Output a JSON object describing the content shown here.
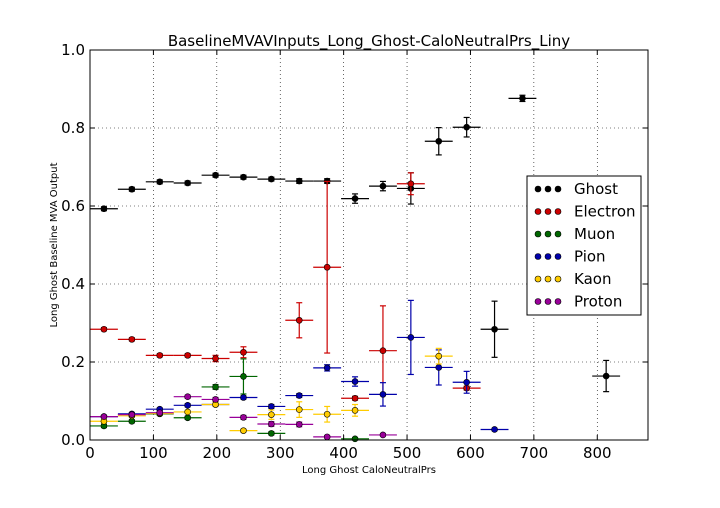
{
  "chart_data": {
    "type": "scatter",
    "title": "BaselineMVAVInputs_Long_Ghost-CaloNeutralPrs_Liny",
    "xlabel": "Long Ghost CaloNeutralPrs",
    "ylabel": "Long Ghost Baseline MVA Output",
    "xlim": [
      0,
      880
    ],
    "ylim": [
      0.0,
      1.0
    ],
    "x_ticks": [
      0,
      100,
      200,
      300,
      400,
      500,
      600,
      700,
      800
    ],
    "y_ticks": [
      0.0,
      0.2,
      0.4,
      0.6,
      0.8,
      1.0
    ],
    "x_tick_labels": [
      "0",
      "100",
      "200",
      "300",
      "400",
      "500",
      "600",
      "700",
      "800"
    ],
    "y_tick_labels": [
      "0.0",
      "0.2",
      "0.4",
      "0.6",
      "0.8",
      "1.0"
    ],
    "grid": true,
    "legend_position": "right",
    "series": [
      {
        "name": "Ghost",
        "color": "#000000",
        "points": [
          {
            "x": 22,
            "xerr": 22,
            "y": 0.593,
            "yerr": 0.005
          },
          {
            "x": 66,
            "xerr": 22,
            "y": 0.643,
            "yerr": 0.005
          },
          {
            "x": 110,
            "xerr": 22,
            "y": 0.662,
            "yerr": 0.005
          },
          {
            "x": 154,
            "xerr": 22,
            "y": 0.659,
            "yerr": 0.005
          },
          {
            "x": 198,
            "xerr": 22,
            "y": 0.679,
            "yerr": 0.005
          },
          {
            "x": 242,
            "xerr": 22,
            "y": 0.674,
            "yerr": 0.005
          },
          {
            "x": 286,
            "xerr": 22,
            "y": 0.669,
            "yerr": 0.005
          },
          {
            "x": 330,
            "xerr": 22,
            "y": 0.664,
            "yerr": 0.006
          },
          {
            "x": 374,
            "xerr": 22,
            "y": 0.664,
            "yerr": 0.006
          },
          {
            "x": 418,
            "xerr": 22,
            "y": 0.619,
            "yerr": 0.012
          },
          {
            "x": 462,
            "xerr": 22,
            "y": 0.651,
            "yerr": 0.012
          },
          {
            "x": 506,
            "xerr": 22,
            "y": 0.645,
            "yerr": 0.04
          },
          {
            "x": 550,
            "xerr": 22,
            "y": 0.766,
            "yerr": 0.035
          },
          {
            "x": 594,
            "xerr": 22,
            "y": 0.802,
            "yerr": 0.025
          },
          {
            "x": 638,
            "xerr": 22,
            "y": 0.284,
            "yerr": 0.072
          },
          {
            "x": 682,
            "xerr": 22,
            "y": 0.876,
            "yerr": 0.008
          },
          {
            "x": 814,
            "xerr": 22,
            "y": 0.164,
            "yerr": 0.04
          }
        ]
      },
      {
        "name": "Electron",
        "color": "#cc0000",
        "points": [
          {
            "x": 22,
            "xerr": 22,
            "y": 0.284,
            "yerr": 0.004
          },
          {
            "x": 66,
            "xerr": 22,
            "y": 0.258,
            "yerr": 0.004
          },
          {
            "x": 110,
            "xerr": 22,
            "y": 0.217,
            "yerr": 0.004
          },
          {
            "x": 154,
            "xerr": 22,
            "y": 0.217,
            "yerr": 0.004
          },
          {
            "x": 198,
            "xerr": 22,
            "y": 0.209,
            "yerr": 0.008
          },
          {
            "x": 242,
            "xerr": 22,
            "y": 0.225,
            "yerr": 0.014
          },
          {
            "x": 330,
            "xerr": 22,
            "y": 0.307,
            "yerr": 0.045
          },
          {
            "x": 374,
            "xerr": 22,
            "y": 0.443,
            "yerr": 0.22
          },
          {
            "x": 418,
            "xerr": 22,
            "y": 0.107,
            "yerr": 0.005
          },
          {
            "x": 462,
            "xerr": 22,
            "y": 0.229,
            "yerr": 0.115
          },
          {
            "x": 506,
            "xerr": 22,
            "y": 0.657,
            "yerr": 0.028
          },
          {
            "x": 594,
            "xerr": 22,
            "y": 0.133,
            "yerr": 0.005
          }
        ]
      },
      {
        "name": "Muon",
        "color": "#006600",
        "points": [
          {
            "x": 22,
            "xerr": 22,
            "y": 0.036,
            "yerr": 0.004
          },
          {
            "x": 66,
            "xerr": 22,
            "y": 0.048,
            "yerr": 0.004
          },
          {
            "x": 110,
            "xerr": 22,
            "y": 0.067,
            "yerr": 0.004
          },
          {
            "x": 154,
            "xerr": 22,
            "y": 0.057,
            "yerr": 0.004
          },
          {
            "x": 198,
            "xerr": 22,
            "y": 0.136,
            "yerr": 0.006
          },
          {
            "x": 242,
            "xerr": 22,
            "y": 0.163,
            "yerr": 0.045
          },
          {
            "x": 286,
            "xerr": 22,
            "y": 0.017,
            "yerr": 0.004
          },
          {
            "x": 418,
            "xerr": 22,
            "y": 0.003,
            "yerr": 0.003
          }
        ]
      },
      {
        "name": "Pion",
        "color": "#0000aa",
        "points": [
          {
            "x": 22,
            "xerr": 22,
            "y": 0.06,
            "yerr": 0.003
          },
          {
            "x": 66,
            "xerr": 22,
            "y": 0.067,
            "yerr": 0.003
          },
          {
            "x": 110,
            "xerr": 22,
            "y": 0.079,
            "yerr": 0.003
          },
          {
            "x": 154,
            "xerr": 22,
            "y": 0.089,
            "yerr": 0.004
          },
          {
            "x": 198,
            "xerr": 22,
            "y": 0.091,
            "yerr": 0.004
          },
          {
            "x": 242,
            "xerr": 22,
            "y": 0.109,
            "yerr": 0.004
          },
          {
            "x": 286,
            "xerr": 22,
            "y": 0.086,
            "yerr": 0.005
          },
          {
            "x": 330,
            "xerr": 22,
            "y": 0.114,
            "yerr": 0.005
          },
          {
            "x": 374,
            "xerr": 22,
            "y": 0.185,
            "yerr": 0.008
          },
          {
            "x": 418,
            "xerr": 22,
            "y": 0.15,
            "yerr": 0.012
          },
          {
            "x": 462,
            "xerr": 22,
            "y": 0.117,
            "yerr": 0.03
          },
          {
            "x": 506,
            "xerr": 22,
            "y": 0.263,
            "yerr": 0.095
          },
          {
            "x": 550,
            "xerr": 22,
            "y": 0.186,
            "yerr": 0.045
          },
          {
            "x": 594,
            "xerr": 22,
            "y": 0.148,
            "yerr": 0.028
          },
          {
            "x": 638,
            "xerr": 22,
            "y": 0.027,
            "yerr": 0.003
          }
        ]
      },
      {
        "name": "Kaon",
        "color": "#ffcc00",
        "points": [
          {
            "x": 22,
            "xerr": 22,
            "y": 0.048,
            "yerr": 0.004
          },
          {
            "x": 66,
            "xerr": 22,
            "y": 0.062,
            "yerr": 0.004
          },
          {
            "x": 110,
            "xerr": 22,
            "y": 0.068,
            "yerr": 0.004
          },
          {
            "x": 154,
            "xerr": 22,
            "y": 0.072,
            "yerr": 0.004
          },
          {
            "x": 198,
            "xerr": 22,
            "y": 0.091,
            "yerr": 0.005
          },
          {
            "x": 242,
            "xerr": 22,
            "y": 0.024,
            "yerr": 0.004
          },
          {
            "x": 286,
            "xerr": 22,
            "y": 0.065,
            "yerr": 0.012
          },
          {
            "x": 330,
            "xerr": 22,
            "y": 0.078,
            "yerr": 0.02
          },
          {
            "x": 374,
            "xerr": 22,
            "y": 0.066,
            "yerr": 0.02
          },
          {
            "x": 418,
            "xerr": 22,
            "y": 0.076,
            "yerr": 0.015
          },
          {
            "x": 550,
            "xerr": 22,
            "y": 0.215,
            "yerr": 0.02
          }
        ]
      },
      {
        "name": "Proton",
        "color": "#990099",
        "points": [
          {
            "x": 22,
            "xerr": 22,
            "y": 0.06,
            "yerr": 0.003
          },
          {
            "x": 66,
            "xerr": 22,
            "y": 0.065,
            "yerr": 0.003
          },
          {
            "x": 110,
            "xerr": 22,
            "y": 0.07,
            "yerr": 0.003
          },
          {
            "x": 154,
            "xerr": 22,
            "y": 0.111,
            "yerr": 0.004
          },
          {
            "x": 198,
            "xerr": 22,
            "y": 0.104,
            "yerr": 0.005
          },
          {
            "x": 242,
            "xerr": 22,
            "y": 0.058,
            "yerr": 0.005
          },
          {
            "x": 286,
            "xerr": 22,
            "y": 0.041,
            "yerr": 0.006
          },
          {
            "x": 330,
            "xerr": 22,
            "y": 0.04,
            "yerr": 0.006
          },
          {
            "x": 374,
            "xerr": 22,
            "y": 0.008,
            "yerr": 0.003
          },
          {
            "x": 462,
            "xerr": 22,
            "y": 0.013,
            "yerr": 0.003
          }
        ]
      }
    ]
  }
}
